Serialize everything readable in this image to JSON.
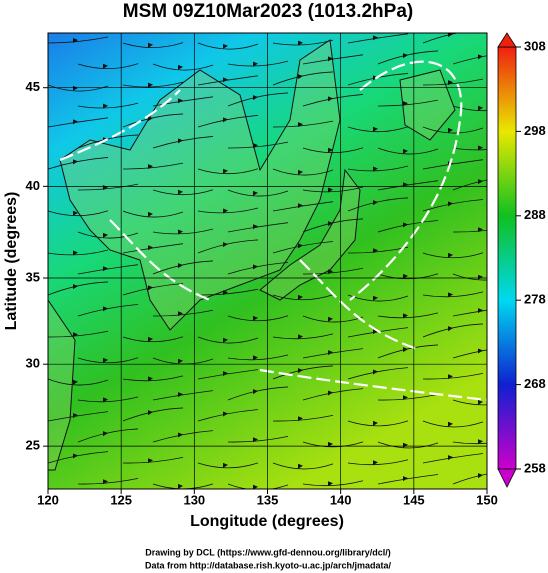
{
  "chart_data": {
    "type": "map",
    "title": "MSM 09Z10Mar2023 (1013.2hPa)",
    "x_label": "Longitude (degrees)",
    "y_label": "Latitude  (degrees)",
    "xlim": [
      120,
      150
    ],
    "xticks": [
      120,
      125,
      130,
      135,
      140,
      145,
      150
    ],
    "ylim": [
      22.3,
      47.6
    ],
    "yticks": [
      25,
      30,
      35,
      40,
      45
    ],
    "projection": "mercator",
    "grid": true,
    "colorbar": {
      "lim": [
        258,
        308
      ],
      "ticks": [
        258,
        268,
        278,
        288,
        298,
        308
      ],
      "colors": [
        "#cc00cc",
        "#1020d0",
        "#00d8f0",
        "#10c020",
        "#e8e800",
        "#f02010"
      ]
    },
    "footer": [
      "Drawing by DCL (https://www.gfd-dennou.org/library/dcl/)",
      "Data from http://database.rish.kyoto-u.ac.jp/arch/jmadata/"
    ]
  }
}
